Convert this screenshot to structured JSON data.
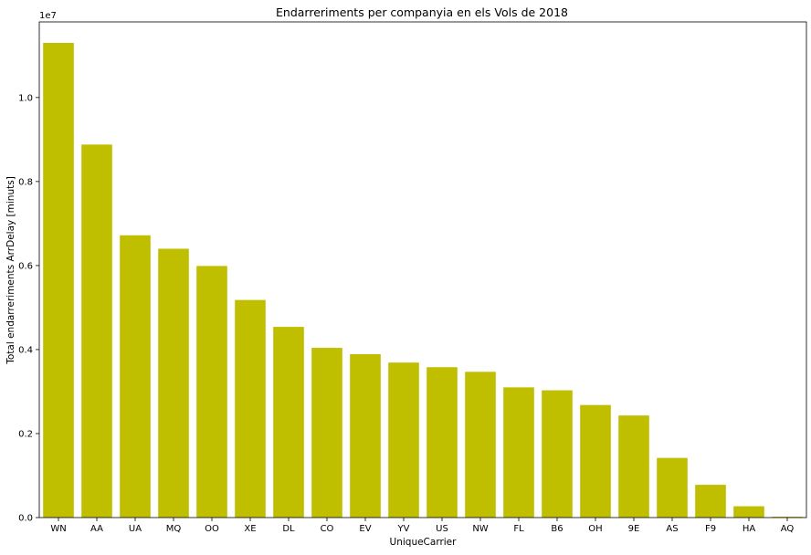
{
  "chart_data": {
    "type": "bar",
    "title": "Endarreriments per companyia en els Vols de 2018",
    "xlabel": "UniqueCarrier",
    "ylabel": "Total endarreriments ArrDelay [minuts]",
    "scale_label": "1e7",
    "categories": [
      "WN",
      "AA",
      "UA",
      "MQ",
      "OO",
      "XE",
      "DL",
      "CO",
      "EV",
      "YV",
      "US",
      "NW",
      "FL",
      "B6",
      "OH",
      "9E",
      "AS",
      "F9",
      "HA",
      "AQ"
    ],
    "values": [
      11300000,
      8880000,
      6720000,
      6400000,
      5990000,
      5180000,
      4540000,
      4040000,
      3890000,
      3690000,
      3580000,
      3470000,
      3100000,
      3030000,
      2680000,
      2430000,
      1420000,
      780000,
      270000,
      20000
    ],
    "ylim": [
      0,
      11800000
    ],
    "yticks": [
      0,
      2000000,
      4000000,
      6000000,
      8000000,
      10000000
    ],
    "ytick_labels": [
      "0.0",
      "0.2",
      "0.4",
      "0.6",
      "0.8",
      "1.0"
    ],
    "bar_color": "#bfbf00",
    "grid": false,
    "legend": "none"
  }
}
